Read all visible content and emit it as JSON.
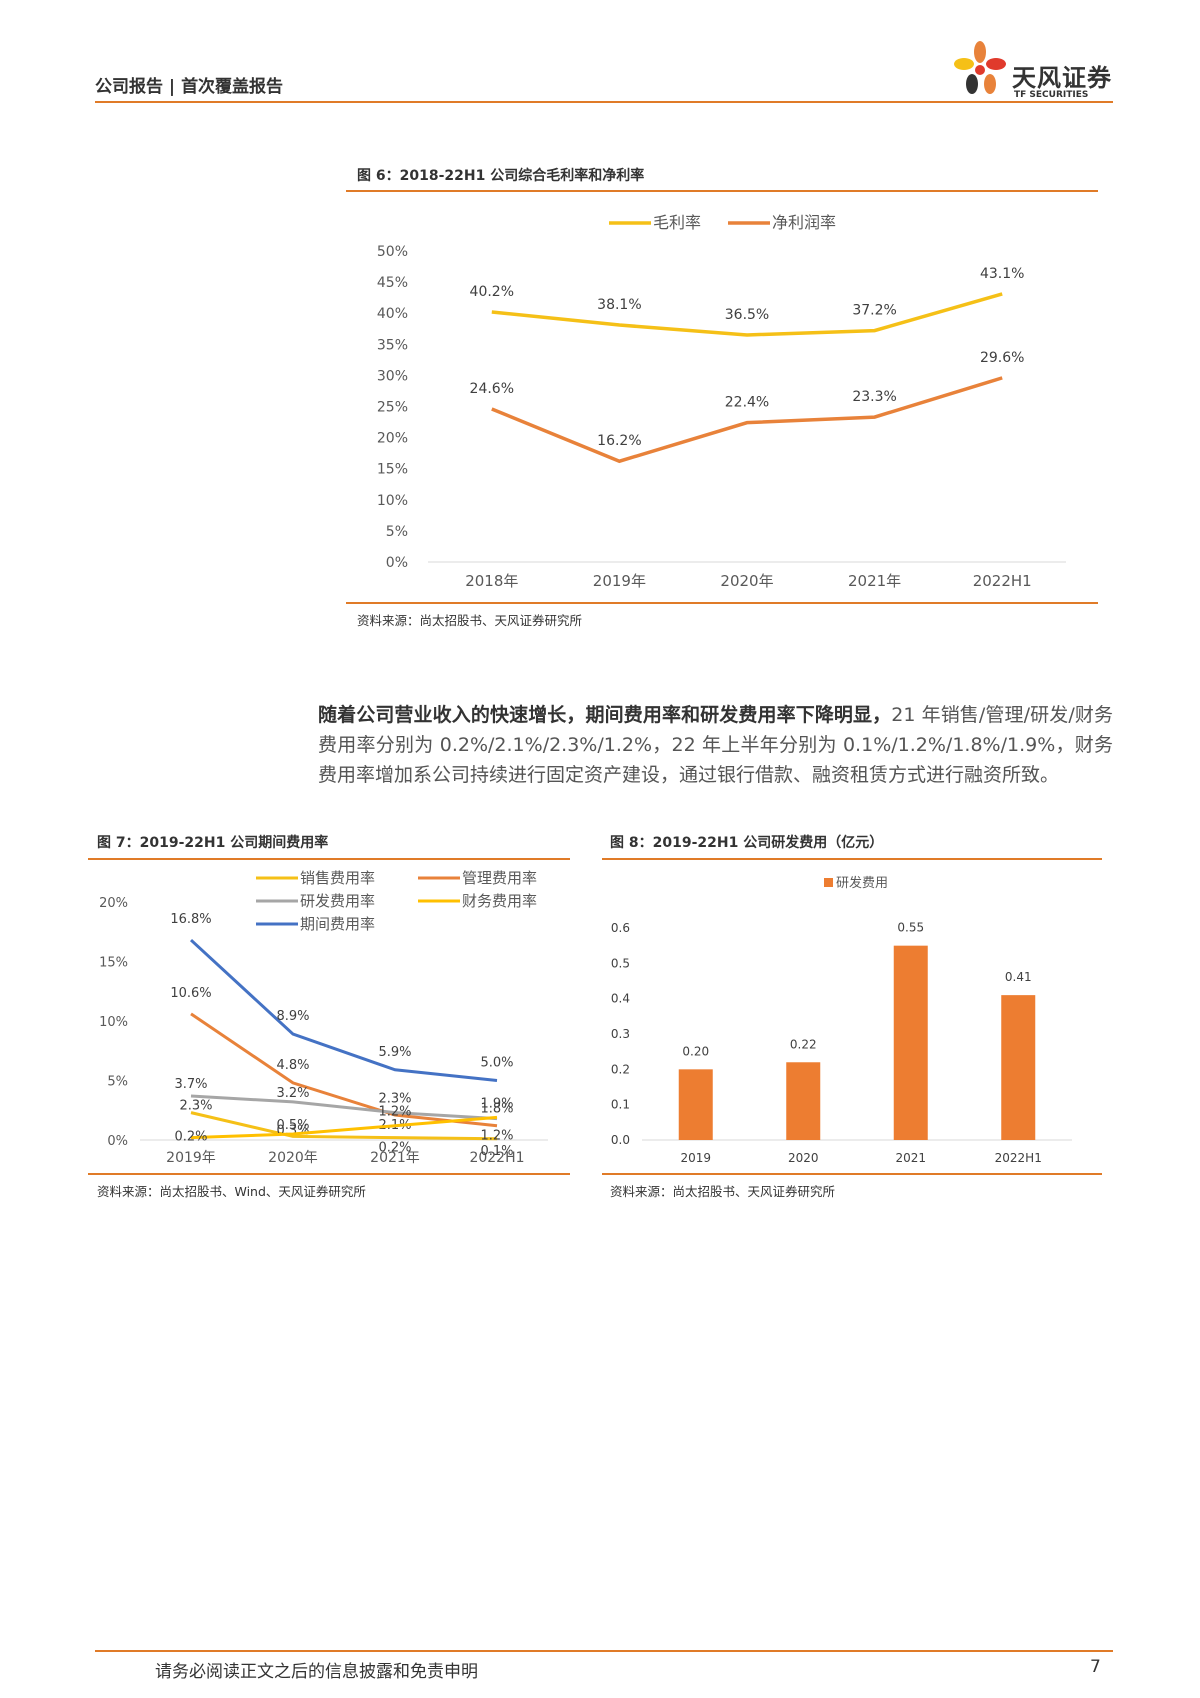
{
  "header": {
    "report_type": "公司报告",
    "report_sub": "首次覆盖报告",
    "logo_cn": "天风证券",
    "logo_en": "TF SECURITIES"
  },
  "fig6": {
    "title": "图 6：2018-22H1 公司综合毛利率和净利率",
    "source": "资料来源：尚太招股书、天风证券研究所"
  },
  "paragraph": {
    "bold": "随着公司营业收入的快速增长，期间费用率和研发费用率下降明显，",
    "rest": "21 年销售/管理/研发/财务费用率分别为 0.2%/2.1%/2.3%/1.2%，22 年上半年分别为 0.1%/1.2%/1.8%/1.9%，财务费用率增加系公司持续进行固定资产建设，通过银行借款、融资租赁方式进行融资所致。"
  },
  "fig7": {
    "title": "图 7：2019-22H1 公司期间费用率",
    "source": "资料来源：尚太招股书、Wind、天风证券研究所"
  },
  "fig8": {
    "title": "图 8：2019-22H1 公司研发费用（亿元）",
    "source": "资料来源：尚太招股书、天风证券研究所"
  },
  "footer": {
    "disclaimer": "请务必阅读正文之后的信息披露和免责申明",
    "page": "7"
  },
  "chart_data": [
    {
      "id": "fig6",
      "type": "line",
      "categories": [
        "2018年",
        "2019年",
        "2020年",
        "2021年",
        "2022H1"
      ],
      "series": [
        {
          "name": "毛利率",
          "color": "#f5c017",
          "values": [
            40.2,
            38.1,
            36.5,
            37.2,
            43.1
          ],
          "labels": [
            "40.2%",
            "38.1%",
            "36.5%",
            "37.2%",
            "43.1%"
          ]
        },
        {
          "name": "净利润率",
          "color": "#e8823a",
          "values": [
            24.6,
            16.2,
            22.4,
            23.3,
            29.6
          ],
          "labels": [
            "24.6%",
            "16.2%",
            "22.4%",
            "23.3%",
            "29.6%"
          ]
        }
      ],
      "yticks": [
        "0%",
        "5%",
        "10%",
        "15%",
        "20%",
        "25%",
        "30%",
        "35%",
        "40%",
        "45%",
        "50%"
      ],
      "ylim": [
        0,
        50
      ],
      "legend": "top"
    },
    {
      "id": "fig7",
      "type": "line",
      "categories": [
        "2019年",
        "2020年",
        "2021年",
        "2022H1"
      ],
      "series": [
        {
          "name": "销售费用率",
          "color": "#f5c017",
          "values": [
            2.3,
            0.3,
            0.2,
            0.1
          ],
          "labels": [
            "2.3%",
            "0.3%",
            "0.2%",
            "0.1%"
          ]
        },
        {
          "name": "管理费用率",
          "color": "#e8823a",
          "values": [
            10.6,
            4.8,
            2.1,
            1.2
          ],
          "labels": [
            "10.6%",
            "4.8%",
            "2.1%",
            "1.2%"
          ]
        },
        {
          "name": "研发费用率",
          "color": "#a6a6a6",
          "values": [
            3.7,
            3.2,
            2.3,
            1.8
          ],
          "labels": [
            "3.7%",
            "3.2%",
            "2.3%",
            "1.8%"
          ]
        },
        {
          "name": "财务费用率",
          "color": "#ffc000",
          "values": [
            0.2,
            0.5,
            1.2,
            1.9
          ],
          "labels": [
            "0.2%",
            "0.5%",
            "1.2%",
            "1.9%"
          ]
        },
        {
          "name": "期间费用率",
          "color": "#4472c4",
          "values": [
            16.8,
            8.9,
            5.9,
            5.0
          ],
          "labels": [
            "16.8%",
            "8.9%",
            "5.9%",
            "5.0%"
          ]
        }
      ],
      "yticks": [
        "0%",
        "5%",
        "10%",
        "15%",
        "20%"
      ],
      "ylim": [
        0,
        20
      ],
      "legend": "top"
    },
    {
      "id": "fig8",
      "type": "bar",
      "categories": [
        "2019",
        "2020",
        "2021",
        "2022H1"
      ],
      "series": [
        {
          "name": "研发费用",
          "color": "#ed7d31",
          "values": [
            0.2,
            0.22,
            0.55,
            0.41
          ],
          "labels": [
            "0.20",
            "0.22",
            "0.55",
            "0.41"
          ]
        }
      ],
      "yticks": [
        "0.0",
        "0.1",
        "0.2",
        "0.3",
        "0.4",
        "0.5",
        "0.6"
      ],
      "ylim": [
        0,
        0.6
      ],
      "legend": "top"
    }
  ]
}
